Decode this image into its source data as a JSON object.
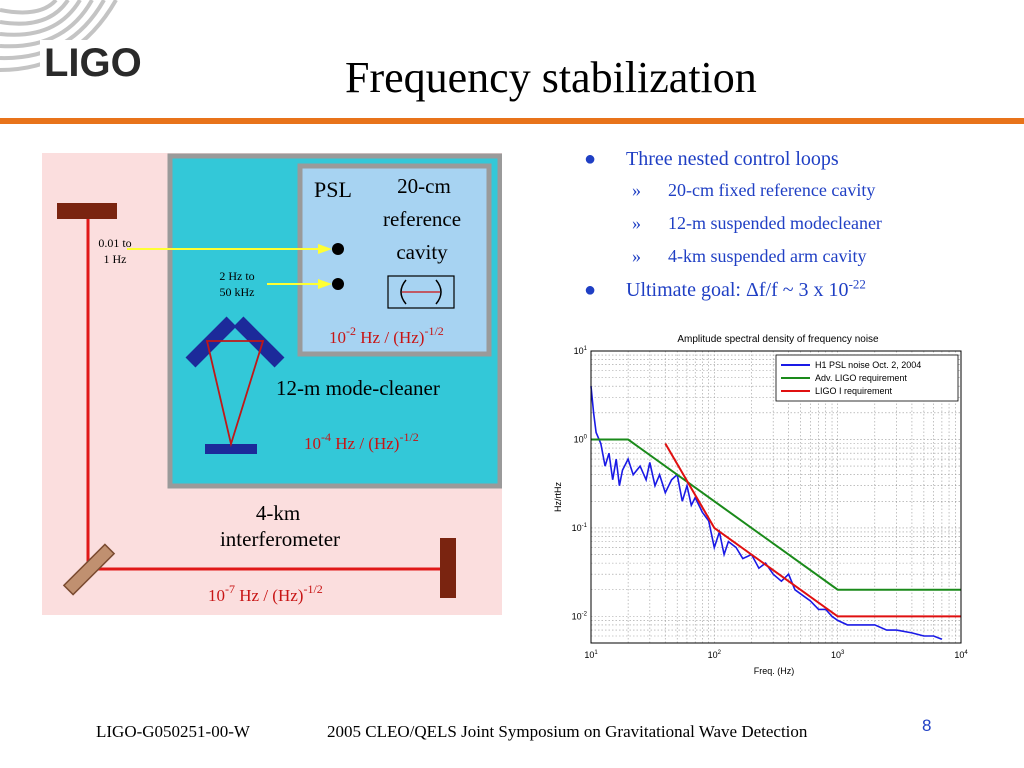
{
  "slide": {
    "logo_text": "LIGO",
    "title": "Frequency stabilization",
    "footer_left": "LIGO-G050251-00-W",
    "footer_center": "2005 CLEO/QELS Joint Symposium on Gravitational Wave Detection",
    "page_number": "8"
  },
  "bullets": {
    "main1": "Three nested control loops",
    "sub": [
      "20-cm fixed reference cavity",
      "12-m suspended modecleaner",
      "4-km suspended arm cavity"
    ],
    "goal_prefix": "Ultimate goal: ",
    "goal_delta": "Δ",
    "goal_main": "f/f ~ 3 x 10",
    "goal_exp": "-22",
    "bullet_glyph": "●",
    "sub_glyph": "»"
  },
  "diagram": {
    "psl": "PSL",
    "ref_cavity": [
      "20-cm",
      "reference",
      "cavity"
    ],
    "psl_noise_base": "10",
    "psl_noise_exp": "-2",
    "psl_noise_unit": " Hz / (Hz)",
    "psl_noise_unit_exp": "-1/2",
    "mode_cleaner": "12-m mode-cleaner",
    "mc_noise_base": "10",
    "mc_noise_exp": "-4",
    "mc_noise_unit": " Hz / (Hz)",
    "mc_noise_unit_exp": "-1/2",
    "ifo": [
      "4-km",
      "interferometer"
    ],
    "ifo_noise_base": "10",
    "ifo_noise_exp": "-7",
    "ifo_noise_unit": " Hz / (Hz)",
    "ifo_noise_unit_exp": "-1/2",
    "band_low": [
      "0.01 to",
      "1 Hz"
    ],
    "band_high": [
      "2 Hz to",
      "50 kHz"
    ],
    "colors": {
      "outer": "#fbdede",
      "mode_cleaner_box": "#33c8d8",
      "psl_box": "#a7d3f2",
      "beam": "#e01818",
      "mirror_blue": "#1c2a9a",
      "mirror_brown": "#7a2410",
      "arrow": "#ffff33",
      "noise_text": "#c81414"
    }
  },
  "chart_data": {
    "type": "line",
    "title": "Amplitude spectral density of frequency noise",
    "xlabel": "Freq. (Hz)",
    "ylabel": "Hz/rtHz",
    "xscale": "log",
    "yscale": "log",
    "xlim": [
      10,
      10000
    ],
    "ylim": [
      0.005,
      10
    ],
    "x_ticks": [
      {
        "base": "10",
        "exp": "1"
      },
      {
        "base": "10",
        "exp": "2"
      },
      {
        "base": "10",
        "exp": "3"
      },
      {
        "base": "10",
        "exp": "4"
      }
    ],
    "y_ticks": [
      {
        "base": "10",
        "exp": "1"
      },
      {
        "base": "10",
        "exp": "0"
      },
      {
        "base": "10",
        "exp": "-1"
      },
      {
        "base": "10",
        "exp": "-2"
      }
    ],
    "grid": true,
    "legend_position": "top-right",
    "series": [
      {
        "name": "H1 PSL noise Oct. 2, 2004",
        "color": "#1a1ae6",
        "x": [
          10,
          10.5,
          11,
          12,
          13,
          14,
          15,
          16,
          17,
          18,
          20,
          22,
          25,
          28,
          30,
          33,
          36,
          40,
          45,
          50,
          55,
          60,
          65,
          70,
          80,
          90,
          100,
          110,
          120,
          130,
          150,
          170,
          200,
          230,
          260,
          300,
          350,
          400,
          450,
          500,
          600,
          700,
          800,
          900,
          1000,
          1200,
          1500,
          2000,
          2500,
          3000,
          4000,
          5000,
          6000,
          7000
        ],
        "y": [
          4.0,
          2.0,
          1.2,
          0.9,
          0.5,
          0.7,
          0.35,
          0.6,
          0.3,
          0.45,
          0.6,
          0.4,
          0.5,
          0.35,
          0.55,
          0.3,
          0.4,
          0.25,
          0.35,
          0.4,
          0.2,
          0.3,
          0.18,
          0.22,
          0.15,
          0.12,
          0.06,
          0.09,
          0.05,
          0.07,
          0.06,
          0.045,
          0.05,
          0.035,
          0.04,
          0.03,
          0.025,
          0.03,
          0.02,
          0.018,
          0.015,
          0.012,
          0.012,
          0.01,
          0.009,
          0.008,
          0.008,
          0.008,
          0.007,
          0.007,
          0.0065,
          0.006,
          0.006,
          0.0055
        ]
      },
      {
        "name": "Adv. LIGO requirement",
        "color": "#1a8a1a",
        "x": [
          10,
          20,
          1000,
          10000
        ],
        "y": [
          1.0,
          1.0,
          0.02,
          0.02
        ]
      },
      {
        "name": "LIGO I requirement",
        "color": "#e01010",
        "x": [
          40,
          100,
          1000,
          10000
        ],
        "y": [
          0.9,
          0.1,
          0.01,
          0.01
        ]
      }
    ]
  }
}
